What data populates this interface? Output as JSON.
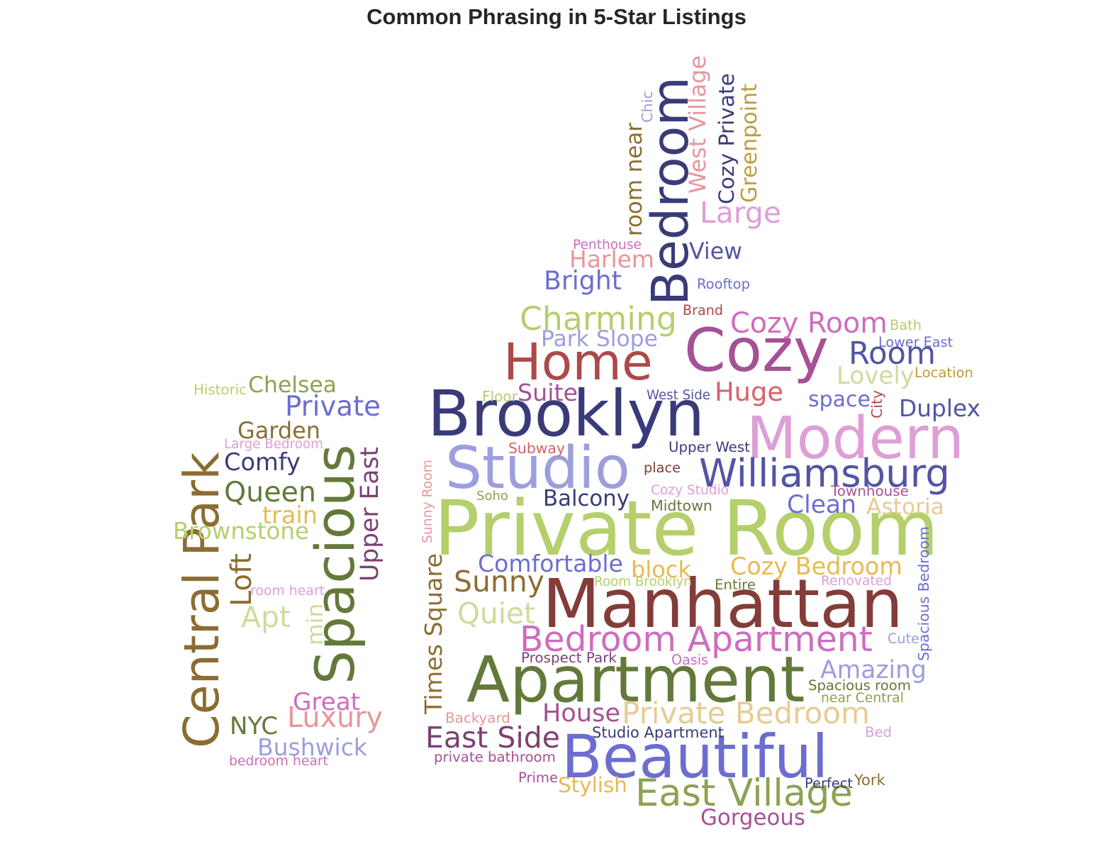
{
  "title": "Common Phrasing in 5-Star Listings",
  "words": [
    {
      "text": "Private Room",
      "color": "#b5cf6b"
    },
    {
      "text": "Manhattan",
      "color": "#843c39"
    },
    {
      "text": "Apartment",
      "color": "#637939"
    },
    {
      "text": "Brooklyn",
      "color": "#393b79"
    },
    {
      "text": "Beautiful",
      "color": "#6b6ecf"
    },
    {
      "text": "Studio",
      "color": "#9c9ede"
    },
    {
      "text": "Cozy",
      "color": "#a55194"
    },
    {
      "text": "Modern",
      "color": "#de9ed6"
    },
    {
      "text": "Home",
      "color": "#ad494a"
    },
    {
      "text": "Williamsburg",
      "color": "#5254a3"
    },
    {
      "text": "Bedroom",
      "color": "#393b79"
    },
    {
      "text": "Spacious",
      "color": "#637939"
    },
    {
      "text": "Central Park",
      "color": "#8c6d31"
    },
    {
      "text": "Bedroom Apartment",
      "color": "#ce6dbd"
    },
    {
      "text": "East Village",
      "color": "#8ca252"
    },
    {
      "text": "Private Bedroom",
      "color": "#e7cb94"
    },
    {
      "text": "Charming",
      "color": "#b5cf6b"
    },
    {
      "text": "Bright",
      "color": "#6b6ecf"
    },
    {
      "text": "Cozy Room",
      "color": "#ce6dbd"
    },
    {
      "text": "Cozy Bedroom",
      "color": "#e7ba52"
    },
    {
      "text": "Comfortable",
      "color": "#6b6ecf"
    },
    {
      "text": "Sunny",
      "color": "#8c6d31"
    },
    {
      "text": "Quiet",
      "color": "#cedb9c"
    },
    {
      "text": "East Side",
      "color": "#7b4173"
    },
    {
      "text": "Room",
      "color": "#5254a3"
    },
    {
      "text": "Lovely",
      "color": "#cedb9c"
    },
    {
      "text": "Duplex",
      "color": "#5254a3"
    },
    {
      "text": "Huge",
      "color": "#d6616b"
    },
    {
      "text": "Large",
      "color": "#de9ed6"
    },
    {
      "text": "Times Square",
      "color": "#8c6d31"
    },
    {
      "text": "Amazing",
      "color": "#9c9ede"
    },
    {
      "text": "House",
      "color": "#a55194"
    },
    {
      "text": "Gorgeous",
      "color": "#a55194"
    },
    {
      "text": "Stylish",
      "color": "#e7ba52"
    },
    {
      "text": "Luxury",
      "color": "#e7969c"
    },
    {
      "text": "Bushwick",
      "color": "#9c9ede"
    },
    {
      "text": "Upper East",
      "color": "#7b4173"
    },
    {
      "text": "Loft",
      "color": "#8c6d31"
    },
    {
      "text": "Apt",
      "color": "#cedb9c"
    },
    {
      "text": "Queen",
      "color": "#637939"
    },
    {
      "text": "Comfy",
      "color": "#393b79"
    },
    {
      "text": "Private",
      "color": "#6b6ecf"
    },
    {
      "text": "Chelsea",
      "color": "#8ca252"
    },
    {
      "text": "Garden",
      "color": "#8c6d31"
    },
    {
      "text": "Brownstone",
      "color": "#b5cf6b"
    },
    {
      "text": "train",
      "color": "#e7ba52"
    },
    {
      "text": "Great",
      "color": "#ce6dbd"
    },
    {
      "text": "NYC",
      "color": "#637939"
    },
    {
      "text": "min",
      "color": "#cedb9c"
    },
    {
      "text": "Historic",
      "color": "#b5cf6b"
    },
    {
      "text": "Large Bedroom",
      "color": "#de9ed6"
    },
    {
      "text": "room heart",
      "color": "#de9ed6"
    },
    {
      "text": "bedroom heart",
      "color": "#ce6dbd"
    },
    {
      "text": "Suite",
      "color": "#a55194"
    },
    {
      "text": "Floor",
      "color": "#b5cf6b"
    },
    {
      "text": "Park Slope",
      "color": "#9c9ede"
    },
    {
      "text": "Harlem",
      "color": "#e7969c"
    },
    {
      "text": "Penthouse",
      "color": "#ce6dbd"
    },
    {
      "text": "View",
      "color": "#5254a3"
    },
    {
      "text": "Rooftop",
      "color": "#6b6ecf"
    },
    {
      "text": "Brand",
      "color": "#ad494a"
    },
    {
      "text": "room near",
      "color": "#8c6d31"
    },
    {
      "text": "Chic",
      "color": "#9c9ede"
    },
    {
      "text": "West Village",
      "color": "#e7969c"
    },
    {
      "text": "Cozy Private",
      "color": "#393b79"
    },
    {
      "text": "Greenpoint",
      "color": "#bd9e39"
    },
    {
      "text": "Bath",
      "color": "#b5cf6b"
    },
    {
      "text": "Lower East",
      "color": "#6b6ecf"
    },
    {
      "text": "Location",
      "color": "#bd9e39"
    },
    {
      "text": "space",
      "color": "#6b6ecf"
    },
    {
      "text": "City",
      "color": "#ad494a"
    },
    {
      "text": "West Side",
      "color": "#5254a3"
    },
    {
      "text": "Upper West",
      "color": "#393b79"
    },
    {
      "text": "Subway",
      "color": "#d6616b"
    },
    {
      "text": "place",
      "color": "#843c39"
    },
    {
      "text": "Cozy Studio",
      "color": "#de9ed6"
    },
    {
      "text": "Midtown",
      "color": "#637939"
    },
    {
      "text": "Soho",
      "color": "#8ca252"
    },
    {
      "text": "Balcony",
      "color": "#393b79"
    },
    {
      "text": "Sunny Room",
      "color": "#e7969c"
    },
    {
      "text": "Clean",
      "color": "#6b6ecf"
    },
    {
      "text": "Townhouse",
      "color": "#a55194"
    },
    {
      "text": "Astoria",
      "color": "#e7cb94"
    },
    {
      "text": "block",
      "color": "#e7ba52"
    },
    {
      "text": "Room Brooklyn",
      "color": "#b5cf6b"
    },
    {
      "text": "Entire",
      "color": "#637939"
    },
    {
      "text": "Renovated",
      "color": "#de9ed6"
    },
    {
      "text": "Spacious Bedroom",
      "color": "#6b6ecf"
    },
    {
      "text": "Cute",
      "color": "#9c9ede"
    },
    {
      "text": "Prospect Park",
      "color": "#7b4173"
    },
    {
      "text": "Oasis",
      "color": "#ce6dbd"
    },
    {
      "text": "Spacious room",
      "color": "#637939"
    },
    {
      "text": "near Central",
      "color": "#8ca252"
    },
    {
      "text": "Backyard",
      "color": "#e7969c"
    },
    {
      "text": "Studio Apartment",
      "color": "#393b79"
    },
    {
      "text": "Bed",
      "color": "#de9ed6"
    },
    {
      "text": "private bathroom",
      "color": "#a55194"
    },
    {
      "text": "Prime",
      "color": "#a55194"
    },
    {
      "text": "Perfect",
      "color": "#393b79"
    },
    {
      "text": "York",
      "color": "#8c6d31"
    }
  ]
}
